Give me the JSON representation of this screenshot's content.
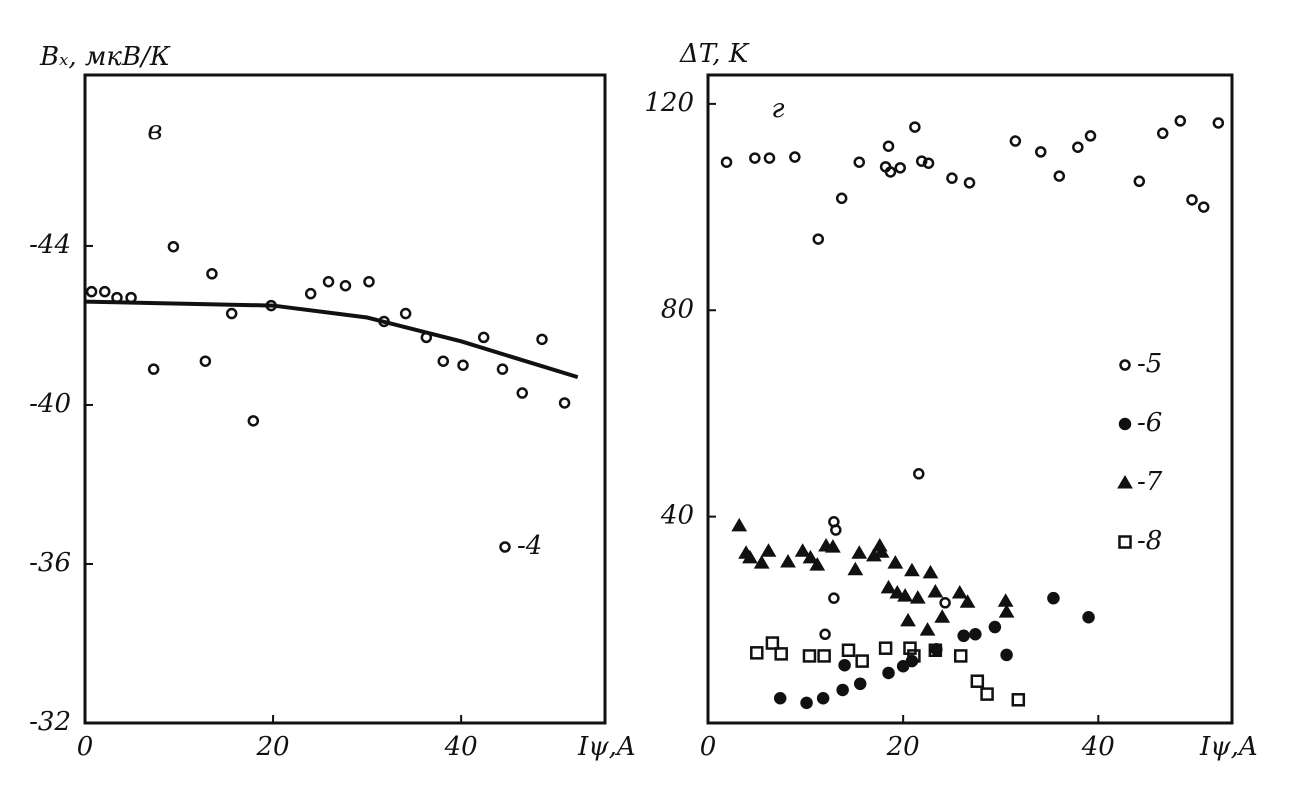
{
  "chart_data": [
    {
      "type": "scatter",
      "panel_label": "в",
      "y_label": "Bₓ, мкВ/К",
      "x_label": "Iψ,A",
      "xlim": [
        0,
        55.3
      ],
      "xticks": [
        0,
        20,
        40
      ],
      "ylim": [
        -32,
        -48.3
      ],
      "yticks": [
        -44,
        -40,
        -36,
        -32
      ],
      "legend": "lower right",
      "color": "#111111",
      "series": [
        {
          "name": "-4",
          "marker": "circle-open",
          "x": [
            0.7,
            2.1,
            3.4,
            4.9,
            7.3,
            9.4,
            12.8,
            13.5,
            15.6,
            17.9,
            19.8,
            24.0,
            25.9,
            27.7,
            30.2,
            31.8,
            34.1,
            36.3,
            38.1,
            40.2,
            42.4,
            44.4,
            46.5,
            48.6,
            51.0
          ],
          "values": [
            -42.85,
            -42.85,
            -42.7,
            -42.7,
            -40.9,
            -43.98,
            -41.1,
            -43.3,
            -42.3,
            -39.6,
            -42.5,
            -42.8,
            -43.1,
            -43.0,
            -43.1,
            -42.1,
            -42.3,
            -41.7,
            -41.1,
            -41.0,
            -41.7,
            -40.9,
            -40.3,
            -41.65,
            -40.05
          ]
        }
      ],
      "curve": {
        "x": [
          0,
          10,
          20,
          30,
          40,
          52.4
        ],
        "values": [
          -42.6,
          -42.55,
          -42.5,
          -42.2,
          -41.6,
          -40.7
        ]
      }
    },
    {
      "type": "scatter",
      "panel_label": "г",
      "y_label": "ΔT, K",
      "x_label": "Iψ,A",
      "xlim": [
        0,
        53.7
      ],
      "xticks": [
        0,
        20,
        40
      ],
      "ylim": [
        0,
        125.6
      ],
      "yticks": [
        40,
        80,
        120
      ],
      "legend": "center right",
      "color": "#111111",
      "series": [
        {
          "name": "-5",
          "marker": "circle-open",
          "x": [
            1.9,
            4.8,
            6.3,
            8.9,
            11.3,
            13.7,
            15.5,
            18.5,
            18.2,
            18.7,
            19.7,
            21.2,
            21.9,
            22.6,
            25.0,
            26.8,
            31.5,
            34.1,
            36.0,
            37.9,
            39.2,
            44.2,
            46.6,
            48.4,
            49.6,
            50.8,
            52.3,
            21.6,
            12.9,
            13.1,
            12.9,
            12.0,
            24.3
          ],
          "values": [
            108.7,
            109.5,
            109.5,
            109.7,
            93.8,
            101.7,
            108.7,
            111.8,
            107.8,
            106.8,
            107.6,
            115.5,
            108.9,
            108.5,
            105.6,
            104.7,
            112.8,
            110.7,
            106.0,
            111.6,
            113.8,
            105.0,
            114.3,
            116.7,
            101.4,
            100.0,
            116.3,
            48.3,
            39.0,
            37.4,
            24.2,
            17.2,
            23.3
          ]
        },
        {
          "name": "-6",
          "marker": "circle-filled",
          "x": [
            7.4,
            10.1,
            11.8,
            13.8,
            14.0,
            15.6,
            18.5,
            20.0,
            20.9,
            23.4,
            26.2,
            27.4,
            29.4,
            30.6,
            35.4,
            39.0
          ],
          "values": [
            4.8,
            3.9,
            4.8,
            6.4,
            11.2,
            7.6,
            9.7,
            11.0,
            12.0,
            14.3,
            16.9,
            17.2,
            18.6,
            13.2,
            24.2,
            20.5
          ]
        },
        {
          "name": "-7",
          "marker": "triangle",
          "x": [
            3.2,
            3.9,
            4.3,
            5.5,
            6.2,
            8.2,
            9.7,
            10.5,
            11.2,
            12.1,
            12.8,
            15.1,
            15.5,
            17.0,
            17.6,
            17.8,
            18.5,
            19.2,
            19.4,
            20.2,
            20.9,
            21.5,
            20.5,
            22.5,
            22.8,
            23.3,
            24.0,
            25.8,
            26.6,
            30.5,
            30.6
          ],
          "values": [
            38.2,
            32.9,
            32.0,
            31.0,
            33.3,
            31.2,
            33.3,
            32.0,
            30.6,
            34.3,
            34.1,
            29.7,
            32.9,
            32.4,
            34.3,
            33.1,
            26.2,
            31.0,
            25.2,
            24.6,
            29.5,
            24.2,
            19.8,
            18.0,
            29.1,
            25.4,
            20.5,
            25.2,
            23.4,
            23.6,
            21.5
          ]
        },
        {
          "name": "-8",
          "marker": "square-open",
          "x": [
            5.0,
            6.6,
            7.5,
            10.4,
            11.9,
            14.4,
            15.8,
            18.2,
            20.7,
            21.1,
            23.3,
            25.9,
            27.6,
            28.6,
            31.8
          ],
          "values": [
            13.6,
            15.5,
            13.4,
            13.0,
            13.0,
            14.1,
            12.0,
            14.5,
            14.5,
            13.0,
            14.1,
            13.0,
            8.1,
            5.6,
            4.5
          ]
        }
      ]
    }
  ]
}
